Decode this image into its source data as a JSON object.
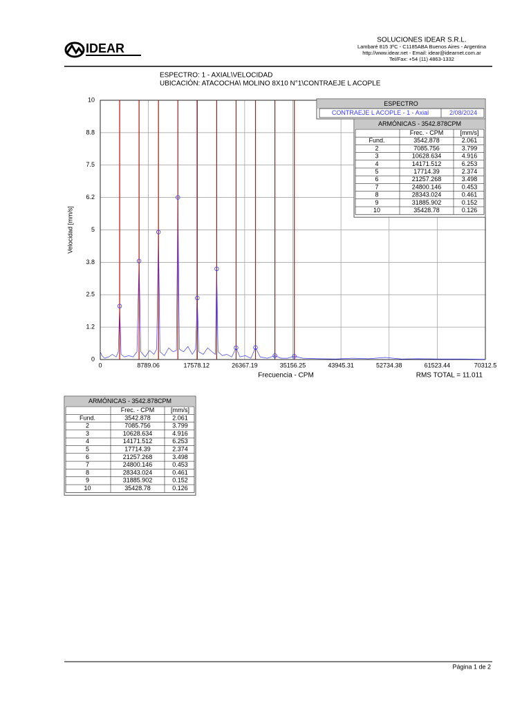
{
  "header": {
    "logo": "IDEAR",
    "company": "SOLUCIONES IDEAR S.R.L.",
    "address": "Lambaré 815 3ºC - C1185ABA Buenos Aires - Argentina",
    "web": "http://www.idear.net - Email: idear@idearnet.com.ar",
    "phone": "Tel/Fax: +54 (11) 4863-1332"
  },
  "report": {
    "title": "ESPECTRO: 1 - AXIAL\\VELOCIDAD",
    "location": "UBICACIÓN: ATACOCHA\\ MOLINO 8X10  N°1\\CONTRAEJE L ACOPLE"
  },
  "chart_data": {
    "type": "line",
    "xlabel": "Frecuencia - CPM",
    "ylabel": "Velocidad [mm/s]",
    "xlim": [
      0,
      70312.5
    ],
    "ylim": [
      0,
      10
    ],
    "xticks": [
      0,
      8789.06,
      17578.12,
      26367.19,
      35156.25,
      43945.31,
      52734.38,
      61523.44,
      70312.5
    ],
    "yticks": [
      0,
      {
        "value": 1.25,
        "label": "1.2"
      },
      2.5,
      {
        "value": 3.75,
        "label": "3.8"
      },
      5,
      {
        "value": 6.25,
        "label": "6.2"
      },
      7.5,
      {
        "value": 8.75,
        "label": "8.8"
      },
      10
    ],
    "grid": true,
    "annotation": "RMS TOTAL = 11.011",
    "legend_title": "ESPECTRO",
    "date": "2/08/2024",
    "series": [
      {
        "name": "CONTRAEJE L ACOPLE - 1 - Axial",
        "color": "#3a3aff",
        "x": [
          0,
          300,
          800,
          1500,
          2200,
          2900,
          3300,
          3542.878,
          3800,
          4400,
          5200,
          6000,
          6700,
          7085.756,
          7400,
          8200,
          9000,
          9800,
          10300,
          10628.634,
          10900,
          11700,
          12500,
          13300,
          13900,
          14171.512,
          14450,
          15200,
          16000,
          16800,
          17400,
          17714.39,
          18000,
          18800,
          19600,
          20400,
          21000,
          21257.268,
          21500,
          22300,
          23100,
          24000,
          24800.146,
          25500,
          26500,
          27500,
          28343.024,
          29200,
          30500,
          31885.902,
          33000,
          34200,
          35428.78,
          37000,
          40000,
          43000,
          46000,
          49000,
          52000,
          55000,
          58000,
          62000,
          66000,
          70312.5
        ],
        "values": [
          0.3,
          0.15,
          0.05,
          0.1,
          0.2,
          0.1,
          0.3,
          2.06,
          0.2,
          0.1,
          0.15,
          0.1,
          0.3,
          3.8,
          0.3,
          0.1,
          0.35,
          0.2,
          0.4,
          4.92,
          0.3,
          0.15,
          0.45,
          0.3,
          0.35,
          6.25,
          0.4,
          0.3,
          0.5,
          0.2,
          0.4,
          2.37,
          0.3,
          0.2,
          0.45,
          0.3,
          0.2,
          3.5,
          0.3,
          0.15,
          0.2,
          0.1,
          0.45,
          0.1,
          0.15,
          0.05,
          0.46,
          0.1,
          0.05,
          0.15,
          0.05,
          0.05,
          0.13,
          0.05,
          0.03,
          0.02,
          0.05,
          0.03,
          0.08,
          0.02,
          0.03,
          0.02,
          0.02,
          0.01
        ]
      }
    ],
    "harmonic_color": "#e00000",
    "harmonics": {
      "title": "ARMÓNICAS - 3542.878CPM",
      "headers": [
        "Frec. - CPM",
        "[mm/s]"
      ],
      "orders": [
        "Fund.",
        "2",
        "3",
        "4",
        "5",
        "6",
        "7",
        "8",
        "9",
        "10"
      ],
      "x": [
        3542.878,
        7085.756,
        10628.634,
        14171.512,
        17714.39,
        21257.268,
        24800.146,
        28343.024,
        31885.902,
        35428.78
      ],
      "values": [
        2.061,
        3.799,
        4.916,
        6.253,
        2.374,
        3.498,
        0.453,
        0.461,
        0.152,
        0.126
      ]
    }
  },
  "footer": {
    "page": "Página 1 de 2"
  }
}
